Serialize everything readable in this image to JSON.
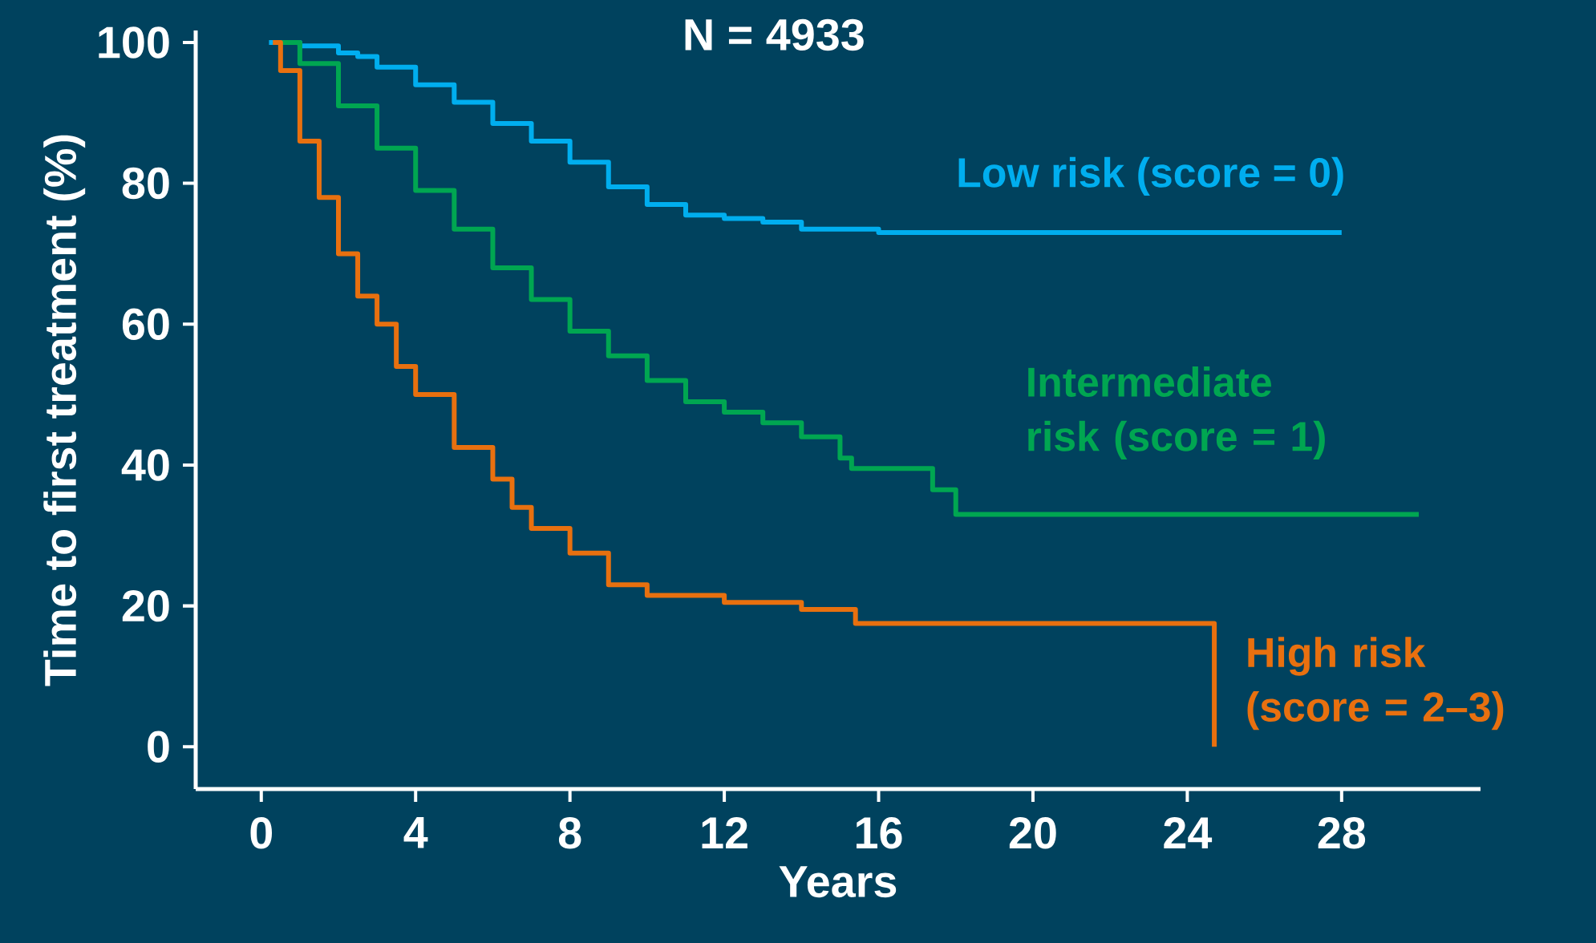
{
  "chart_data": {
    "type": "step",
    "title": "N = 4933",
    "xlabel": "Years",
    "ylabel": "Time to first treatment (%)",
    "xlim": [
      -1.7,
      31.6
    ],
    "ylim": [
      -6,
      101.7
    ],
    "xticks": [
      0,
      4,
      8,
      12,
      16,
      20,
      24,
      28
    ],
    "yticks": [
      0,
      20,
      40,
      60,
      80,
      100
    ],
    "series": [
      {
        "name": "Low risk (score = 0)",
        "color": "#00aeef",
        "x": [
          0.2,
          1,
          2,
          2.5,
          3,
          4,
          5,
          6,
          7,
          8,
          9,
          10,
          11,
          12,
          13,
          14,
          16,
          20,
          28
        ],
        "values": [
          100,
          99.5,
          98.5,
          98,
          96.5,
          94,
          91.5,
          88.5,
          86,
          83,
          79.5,
          77,
          75.5,
          75,
          74.5,
          73.5,
          73,
          73,
          73
        ]
      },
      {
        "name": "Intermediate risk (score = 1)",
        "color": "#00a651",
        "x": [
          0.5,
          1,
          2,
          3,
          4,
          5,
          6,
          7,
          8,
          9,
          10,
          11,
          12,
          13,
          14,
          15,
          15.3,
          17.3,
          17.4,
          18,
          30
        ],
        "values": [
          100,
          97,
          91,
          85,
          79,
          73.5,
          68,
          63.5,
          59,
          55.5,
          52,
          49,
          47.5,
          46,
          44,
          41,
          39.5,
          39.5,
          36.5,
          33,
          33
        ]
      },
      {
        "name": "High risk (score = 2–3)",
        "color": "#e8700f",
        "x": [
          0.3,
          0.5,
          1,
          1.5,
          2,
          2.5,
          3,
          3.5,
          4,
          5,
          6,
          6.5,
          7,
          8,
          9,
          10,
          12,
          14,
          15.2,
          15.4,
          24.7,
          24.7
        ],
        "values": [
          100,
          96,
          86,
          78,
          70,
          64,
          60,
          54,
          50,
          42.5,
          38,
          34,
          31,
          27.5,
          23,
          21.5,
          20.5,
          19.5,
          19.5,
          17.5,
          17.5,
          0
        ]
      }
    ]
  }
}
